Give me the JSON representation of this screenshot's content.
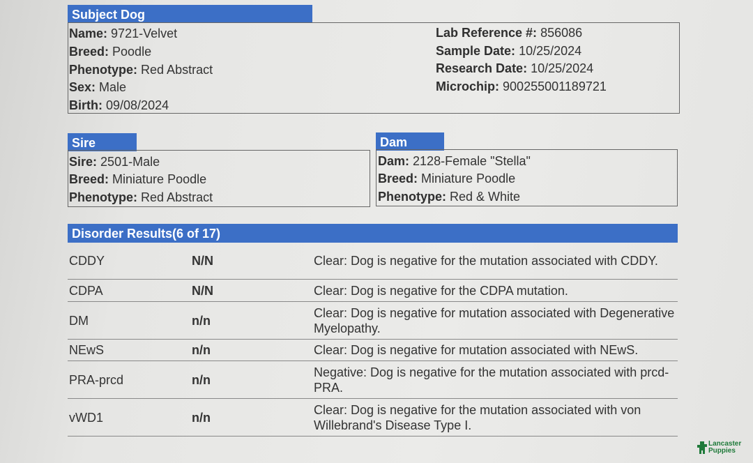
{
  "subject": {
    "title": "Subject Dog",
    "left": [
      {
        "label": "Name:",
        "value": "9721-Velvet"
      },
      {
        "label": "Breed:",
        "value": "Poodle"
      },
      {
        "label": "Phenotype:",
        "value": "Red Abstract"
      },
      {
        "label": "Sex:",
        "value": "Male"
      },
      {
        "label": "Birth:",
        "value": "09/08/2024"
      }
    ],
    "right": [
      {
        "label": "Lab Reference #:",
        "value": "856086"
      },
      {
        "label": "Sample Date:",
        "value": "10/25/2024"
      },
      {
        "label": "Research Date:",
        "value": "10/25/2024"
      },
      {
        "label": "Microchip:",
        "value": "900255001189721"
      }
    ]
  },
  "sire": {
    "title": "Sire",
    "fields": [
      {
        "label": "Sire:",
        "value": "2501-Male"
      },
      {
        "label": "Breed:",
        "value": "Miniature Poodle"
      },
      {
        "label": "Phenotype:",
        "value": "Red Abstract"
      }
    ]
  },
  "dam": {
    "title": "Dam",
    "fields": [
      {
        "label": "Dam:",
        "value": "2128-Female \"Stella\""
      },
      {
        "label": "Breed:",
        "value": "Miniature Poodle"
      },
      {
        "label": "Phenotype:",
        "value": "Red & White"
      }
    ]
  },
  "disorders": {
    "title": "Disorder Results(6 of 17)",
    "rows": [
      {
        "name": "CDDY",
        "genotype": "N/N",
        "result": "Clear: Dog is negative for the mutation associated with CDDY."
      },
      {
        "name": "CDPA",
        "genotype": "N/N",
        "result": "Clear: Dog is negative for the CDPA mutation."
      },
      {
        "name": "DM",
        "genotype": "n/n",
        "result": "Clear: Dog is negative for mutation associated with Degenerative Myelopathy."
      },
      {
        "name": "NEwS",
        "genotype": "n/n",
        "result": "Clear: Dog is negative for mutation associated with NEwS."
      },
      {
        "name": "PRA-prcd",
        "genotype": "n/n",
        "result": "Negative: Dog is negative for the mutation associated with prcd-PRA."
      },
      {
        "name": "vWD1",
        "genotype": "n/n",
        "result": "Clear: Dog is negative for the mutation associated with von Willebrand's Disease Type I."
      }
    ]
  },
  "watermark": {
    "line1": "Lancaster",
    "line2": "Puppies",
    "color": "#1f7a3a"
  }
}
